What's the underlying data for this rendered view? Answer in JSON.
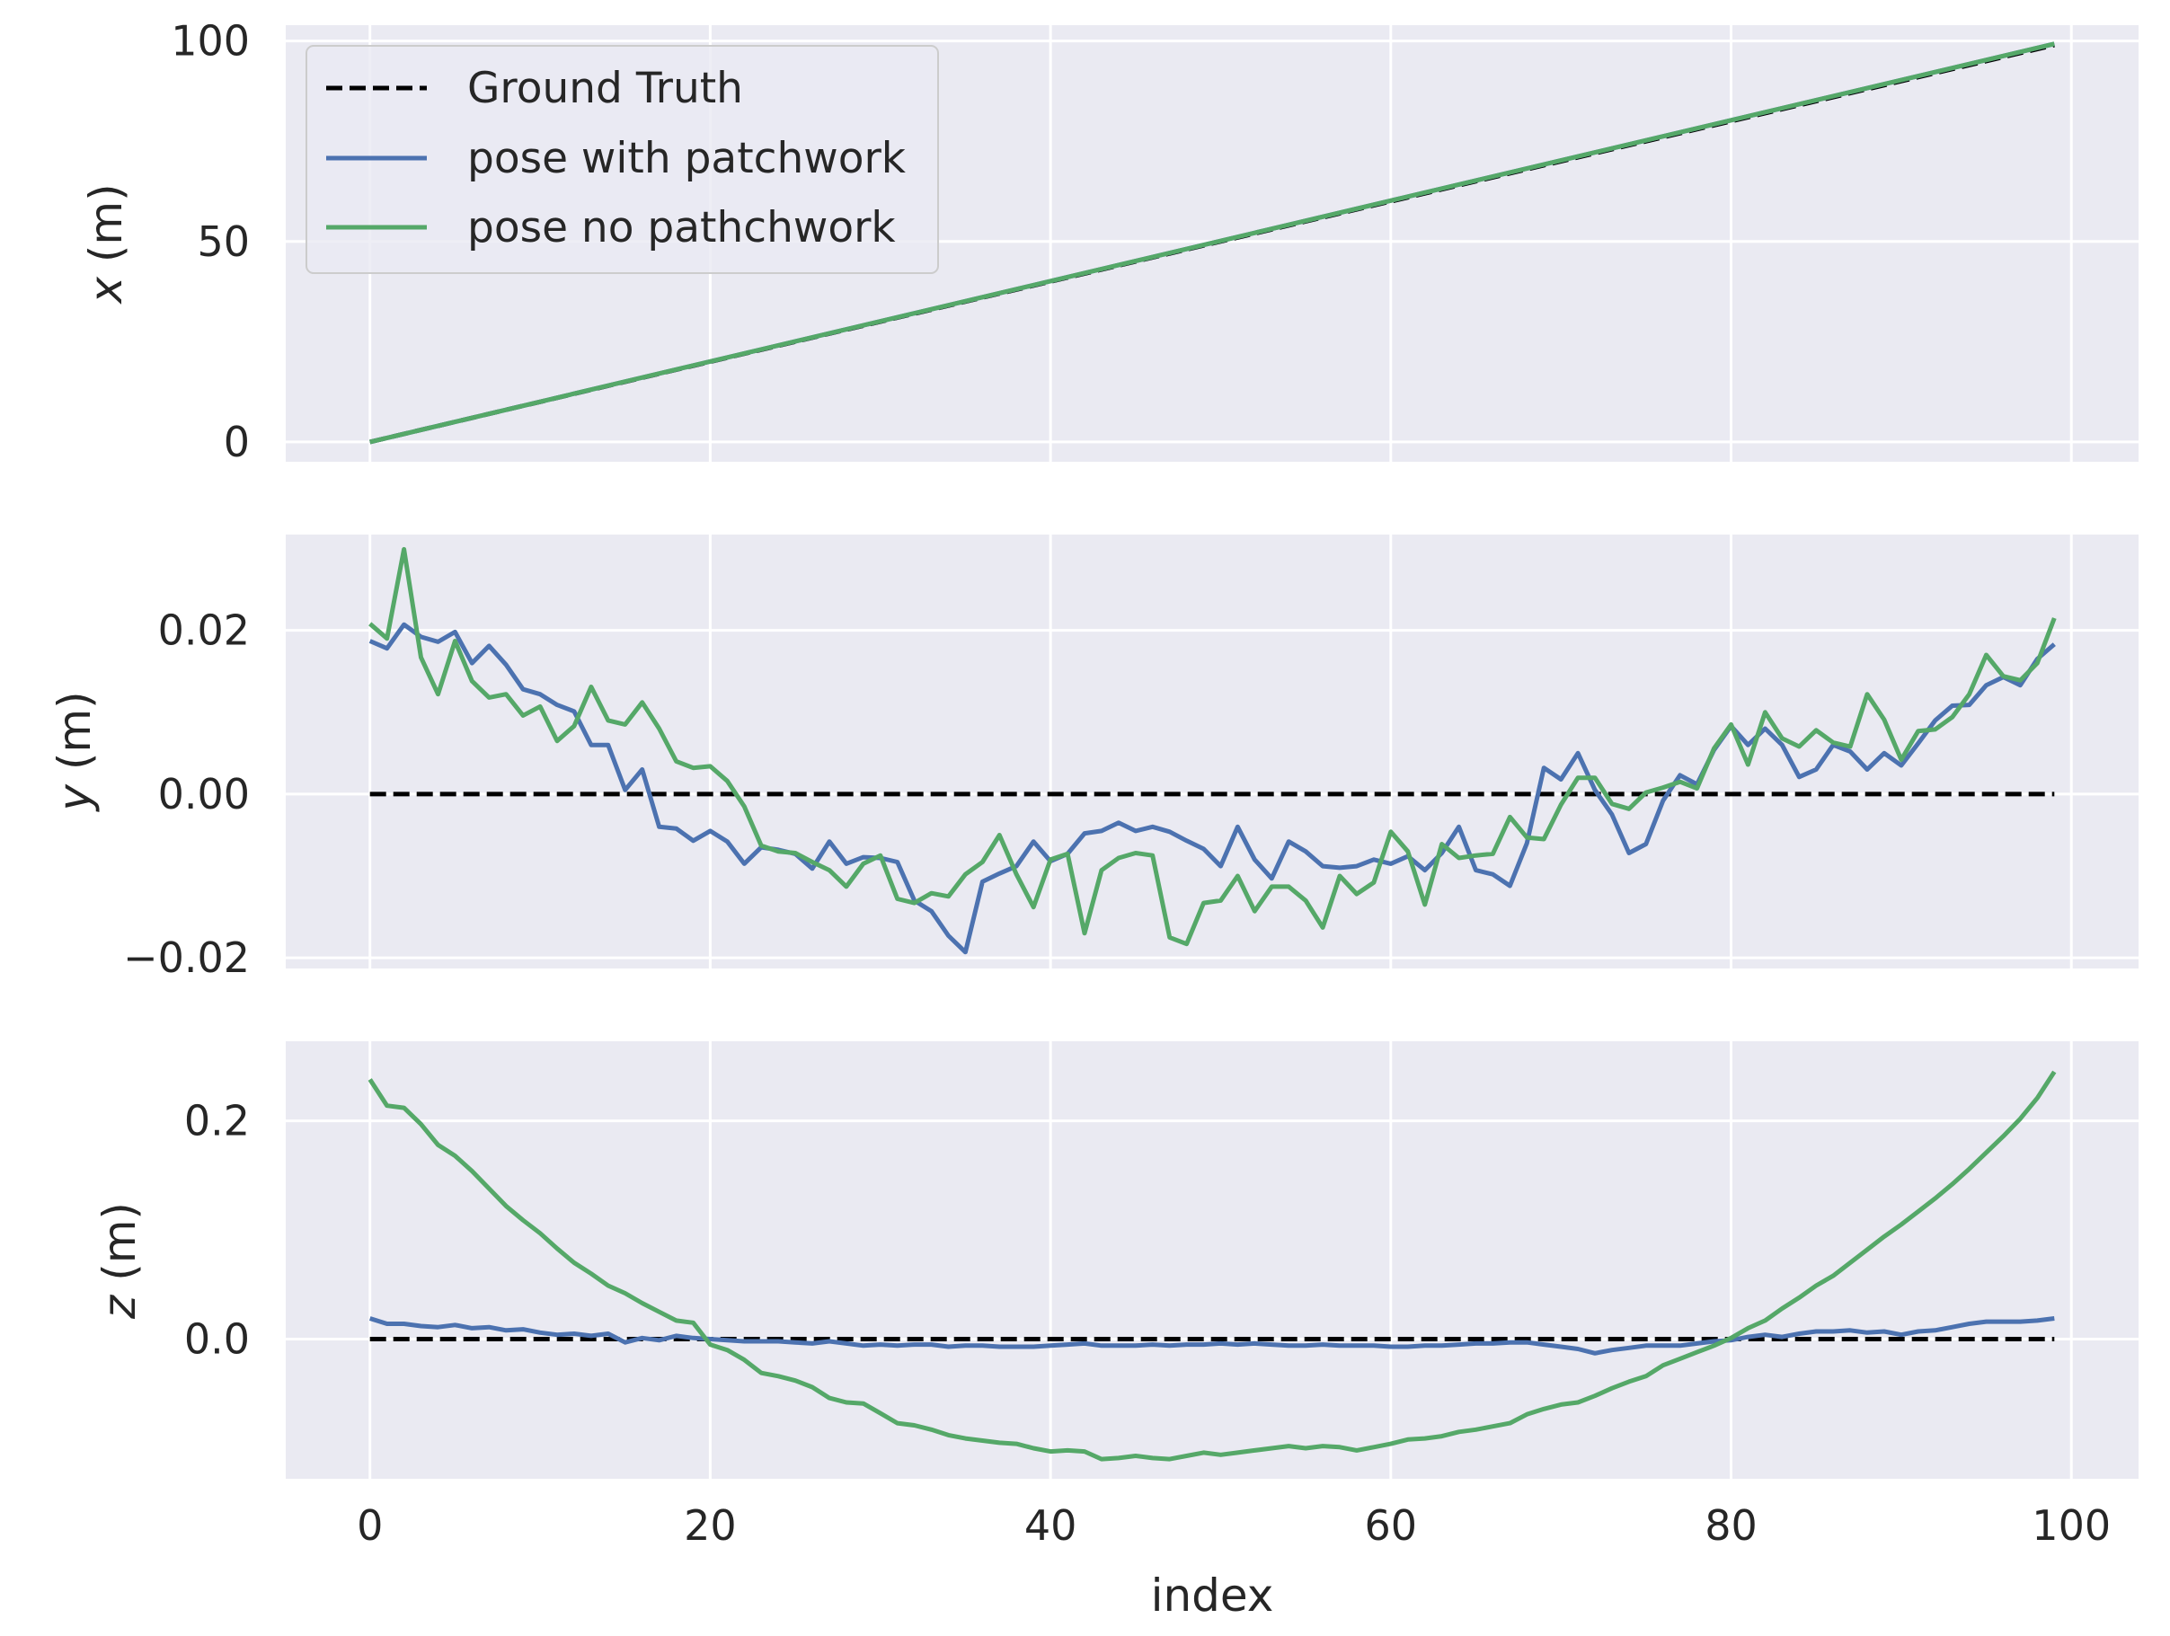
{
  "colors": {
    "ground_truth": "#000000",
    "pose_with_patchwork": "#4c72b0",
    "pose_no_patchwork": "#55a868",
    "plot_background": "#eaeaf2",
    "grid": "#ffffff"
  },
  "chart_data": [
    {
      "type": "line",
      "ylabel_var": "x",
      "ylabel_unit": " (m)",
      "xlim": [
        -4.95,
        103.95
      ],
      "ylim": [
        -4.95,
        103.95
      ],
      "yticks": [
        0,
        50,
        100
      ],
      "ytick_labels": [
        "0",
        "50",
        "100"
      ],
      "grid": true,
      "legend": {
        "placement": "upper-left",
        "entries": [
          "Ground Truth",
          "pose with patchwork",
          "pose no pathchwork"
        ]
      },
      "series": [
        {
          "name": "Ground Truth",
          "style": "dashed",
          "color_key": "ground_truth",
          "x_range": [
            0,
            99
          ],
          "y": "linear_0_to_99"
        },
        {
          "name": "pose with patchwork",
          "style": "solid",
          "color_key": "pose_with_patchwork",
          "x_range": [
            0,
            99
          ],
          "y": "linear_0_to_99.3"
        },
        {
          "name": "pose no pathchwork",
          "style": "solid",
          "color_key": "pose_no_patchwork",
          "x_range": [
            0,
            99
          ],
          "y": "linear_0_to_99.3"
        }
      ]
    },
    {
      "type": "line",
      "ylabel_var": "y",
      "ylabel_unit": " (m)",
      "xlim": [
        -4.95,
        103.95
      ],
      "ylim": [
        -0.0213,
        0.0317
      ],
      "yticks": [
        -0.02,
        0.0,
        0.02
      ],
      "ytick_labels": [
        "−0.02",
        "0.00",
        "0.02"
      ],
      "grid": true,
      "series": [
        {
          "name": "Ground Truth",
          "style": "dashed",
          "color_key": "ground_truth",
          "x": [
            0,
            99
          ],
          "values": [
            0,
            0
          ]
        },
        {
          "name": "pose with patchwork",
          "style": "solid",
          "color_key": "pose_with_patchwork",
          "values": [
            0.0187,
            0.0178,
            0.0207,
            0.0192,
            0.0186,
            0.0198,
            0.016,
            0.0181,
            0.0158,
            0.0128,
            0.0122,
            0.0109,
            0.0101,
            0.006,
            0.006,
            0.0005,
            0.003,
            -0.004,
            -0.0042,
            -0.0057,
            -0.0045,
            -0.0058,
            -0.0085,
            -0.0065,
            -0.0068,
            -0.0073,
            -0.0091,
            -0.0058,
            -0.0085,
            -0.0077,
            -0.0078,
            -0.0083,
            -0.013,
            -0.0143,
            -0.0173,
            -0.0193,
            -0.0107,
            -0.0097,
            -0.0088,
            -0.0058,
            -0.0082,
            -0.0073,
            -0.0048,
            -0.0045,
            -0.0035,
            -0.0045,
            -0.004,
            -0.0046,
            -0.0057,
            -0.0067,
            -0.0088,
            -0.004,
            -0.008,
            -0.0103,
            -0.0058,
            -0.007,
            -0.0088,
            -0.009,
            -0.0088,
            -0.008,
            -0.0085,
            -0.0076,
            -0.0093,
            -0.0072,
            -0.004,
            -0.0093,
            -0.0098,
            -0.0112,
            -0.006,
            0.0032,
            0.0018,
            0.005,
            0.0005,
            -0.0025,
            -0.0072,
            -0.0061,
            -0.0008,
            0.0023,
            0.0012,
            0.0054,
            0.0083,
            0.006,
            0.008,
            0.006,
            0.0021,
            0.003,
            0.006,
            0.0052,
            0.003,
            0.005,
            0.0035,
            0.0062,
            0.009,
            0.0108,
            0.0109,
            0.0133,
            0.0143,
            0.0133,
            0.0165,
            0.0183
          ]
        },
        {
          "name": "pose no pathchwork",
          "style": "solid",
          "color_key": "pose_no_patchwork",
          "values": [
            0.0208,
            0.019,
            0.0299,
            0.0167,
            0.0122,
            0.0187,
            0.0138,
            0.0118,
            0.0122,
            0.0096,
            0.0107,
            0.0065,
            0.0083,
            0.0131,
            0.009,
            0.0085,
            0.0112,
            0.008,
            0.004,
            0.0032,
            0.0034,
            0.0016,
            -0.0015,
            -0.0063,
            -0.007,
            -0.0072,
            -0.0083,
            -0.0093,
            -0.0113,
            -0.0085,
            -0.0075,
            -0.0128,
            -0.0133,
            -0.0121,
            -0.0125,
            -0.0098,
            -0.0083,
            -0.005,
            -0.0098,
            -0.0138,
            -0.008,
            -0.0073,
            -0.017,
            -0.0093,
            -0.0078,
            -0.0072,
            -0.0075,
            -0.0175,
            -0.0183,
            -0.0133,
            -0.013,
            -0.01,
            -0.0143,
            -0.0113,
            -0.0113,
            -0.013,
            -0.0163,
            -0.01,
            -0.0122,
            -0.0108,
            -0.0046,
            -0.007,
            -0.0135,
            -0.0061,
            -0.0078,
            -0.0075,
            -0.0073,
            -0.0028,
            -0.0053,
            -0.0055,
            -0.0013,
            0.002,
            0.002,
            -0.0012,
            -0.0018,
            0.0002,
            0.0008,
            0.0015,
            0.0007,
            0.0056,
            0.0085,
            0.0036,
            0.01,
            0.0068,
            0.0058,
            0.0078,
            0.0063,
            0.0058,
            0.0122,
            0.0091,
            0.0042,
            0.0077,
            0.0079,
            0.0094,
            0.0122,
            0.017,
            0.0144,
            0.0139,
            0.016,
            0.0215
          ]
        }
      ]
    },
    {
      "type": "line",
      "ylabel_var": "z",
      "ylabel_unit": " (m)",
      "xindex_label": "index",
      "xlim": [
        -4.95,
        103.95
      ],
      "ylim": [
        -0.128,
        0.273
      ],
      "yticks": [
        0.0,
        0.2
      ],
      "ytick_labels": [
        "0.0",
        "0.2"
      ],
      "xticks": [
        0,
        20,
        40,
        60,
        80,
        100
      ],
      "xtick_labels": [
        "0",
        "20",
        "40",
        "60",
        "80",
        "100"
      ],
      "grid": true,
      "series": [
        {
          "name": "Ground Truth",
          "style": "dashed",
          "color_key": "ground_truth",
          "x": [
            0,
            99
          ],
          "values": [
            0,
            0
          ]
        },
        {
          "name": "pose with patchwork",
          "style": "solid",
          "color_key": "pose_with_patchwork",
          "values": [
            0.019,
            0.014,
            0.014,
            0.012,
            0.011,
            0.013,
            0.01,
            0.011,
            0.008,
            0.009,
            0.006,
            0.004,
            0.005,
            0.003,
            0.005,
            -0.003,
            0.001,
            -0.001,
            0.003,
            0.001,
            0.0,
            -0.001,
            -0.002,
            -0.002,
            -0.002,
            -0.003,
            -0.004,
            -0.002,
            -0.004,
            -0.006,
            -0.005,
            -0.006,
            -0.005,
            -0.005,
            -0.007,
            -0.006,
            -0.006,
            -0.007,
            -0.007,
            -0.007,
            -0.006,
            -0.005,
            -0.004,
            -0.006,
            -0.006,
            -0.006,
            -0.005,
            -0.006,
            -0.005,
            -0.005,
            -0.004,
            -0.005,
            -0.004,
            -0.005,
            -0.006,
            -0.006,
            -0.005,
            -0.006,
            -0.006,
            -0.006,
            -0.007,
            -0.007,
            -0.006,
            -0.006,
            -0.005,
            -0.004,
            -0.004,
            -0.003,
            -0.003,
            -0.005,
            -0.007,
            -0.009,
            -0.013,
            -0.01,
            -0.008,
            -0.006,
            -0.006,
            -0.006,
            -0.004,
            -0.002,
            -0.001,
            0.002,
            0.004,
            0.002,
            0.005,
            0.007,
            0.007,
            0.008,
            0.006,
            0.007,
            0.004,
            0.007,
            0.008,
            0.011,
            0.014,
            0.016,
            0.016,
            0.016,
            0.017,
            0.019
          ]
        },
        {
          "name": "pose no pathchwork",
          "style": "solid",
          "color_key": "pose_no_patchwork",
          "values": [
            0.238,
            0.214,
            0.212,
            0.197,
            0.178,
            0.168,
            0.154,
            0.138,
            0.122,
            0.109,
            0.097,
            0.083,
            0.07,
            0.06,
            0.049,
            0.042,
            0.033,
            0.025,
            0.017,
            0.015,
            -0.005,
            -0.01,
            -0.019,
            -0.031,
            -0.034,
            -0.038,
            -0.044,
            -0.054,
            -0.058,
            -0.059,
            -0.068,
            -0.077,
            -0.079,
            -0.083,
            -0.088,
            -0.091,
            -0.093,
            -0.095,
            -0.096,
            -0.1,
            -0.103,
            -0.102,
            -0.103,
            -0.11,
            -0.109,
            -0.107,
            -0.109,
            -0.11,
            -0.107,
            -0.104,
            -0.106,
            -0.104,
            -0.102,
            -0.1,
            -0.098,
            -0.1,
            -0.098,
            -0.099,
            -0.102,
            -0.099,
            -0.096,
            -0.092,
            -0.091,
            -0.089,
            -0.085,
            -0.083,
            -0.08,
            -0.077,
            -0.069,
            -0.064,
            -0.06,
            -0.058,
            -0.052,
            -0.045,
            -0.039,
            -0.034,
            -0.024,
            -0.018,
            -0.012,
            -0.006,
            0.001,
            0.01,
            0.017,
            0.028,
            0.038,
            0.049,
            0.058,
            0.07,
            0.082,
            0.094,
            0.105,
            0.117,
            0.129,
            0.142,
            0.156,
            0.171,
            0.186,
            0.202,
            0.221,
            0.245
          ]
        }
      ]
    }
  ]
}
